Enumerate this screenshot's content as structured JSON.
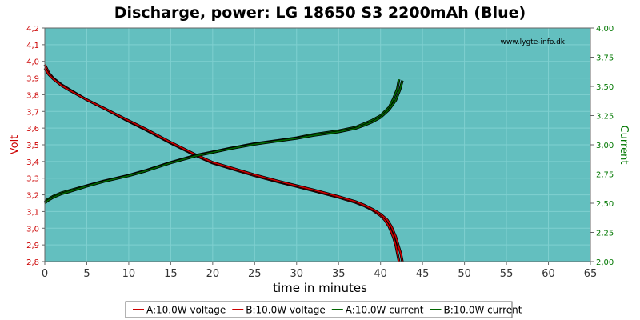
{
  "chart_data": {
    "type": "line",
    "title": "Discharge, power: LG 18650 S3 2200mAh (Blue)",
    "watermark": "www.lygte-info.dk",
    "xlabel": "time in minutes",
    "ylabel_left": "Volt",
    "ylabel_right": "Current",
    "xlim": [
      0,
      65
    ],
    "ylim_left": [
      2.8,
      4.2
    ],
    "ylim_right": [
      2.0,
      4.0
    ],
    "x_ticks": [
      "0",
      "5",
      "10",
      "15",
      "20",
      "25",
      "30",
      "35",
      "40",
      "45",
      "50",
      "55",
      "60",
      "65"
    ],
    "y_left_ticks": [
      "2,8",
      "2,9",
      "3,0",
      "3,1",
      "3,2",
      "3,3",
      "3,4",
      "3,5",
      "3,6",
      "3,7",
      "3,8",
      "3,9",
      "4,0",
      "4,1",
      "4,2"
    ],
    "y_right_ticks": [
      "2,00",
      "2,25",
      "2,50",
      "2,75",
      "3,00",
      "3,25",
      "3,50",
      "3,75",
      "4,00"
    ],
    "grid": true,
    "legend_position": "bottom",
    "colors": {
      "plot_bg": "#63BFBF",
      "grid": "#7fd0d0",
      "voltage": "#cc0000",
      "current": "#006600",
      "left_axis": "#cc0000",
      "right_axis": "#007700"
    },
    "series": [
      {
        "name": "A:10.0W voltage",
        "axis": "left",
        "color": "#cc0000",
        "x": [
          0,
          0.5,
          1,
          2,
          3,
          5,
          7,
          10,
          12,
          15,
          17,
          18,
          20,
          22,
          25,
          28,
          30,
          32,
          35,
          37,
          38,
          39,
          40,
          40.5,
          41,
          41.5,
          41.8,
          42,
          42.2
        ],
        "values": [
          3.98,
          3.93,
          3.9,
          3.86,
          3.83,
          3.77,
          3.72,
          3.64,
          3.59,
          3.51,
          3.46,
          3.435,
          3.39,
          3.36,
          3.315,
          3.275,
          3.25,
          3.225,
          3.185,
          3.155,
          3.135,
          3.11,
          3.075,
          3.05,
          3.01,
          2.95,
          2.9,
          2.85,
          2.8
        ]
      },
      {
        "name": "B:10.0W voltage",
        "axis": "left",
        "color": "#cc0000",
        "x": [
          0,
          0.5,
          1,
          2,
          3,
          5,
          7,
          10,
          12,
          15,
          17,
          18,
          20,
          22,
          25,
          28,
          30,
          32,
          35,
          37,
          38,
          39,
          40,
          40.8,
          41.3,
          41.8,
          42.1,
          42.4,
          42.6
        ],
        "values": [
          3.96,
          3.92,
          3.895,
          3.855,
          3.825,
          3.77,
          3.72,
          3.645,
          3.595,
          3.515,
          3.465,
          3.44,
          3.395,
          3.365,
          3.32,
          3.28,
          3.255,
          3.23,
          3.19,
          3.16,
          3.14,
          3.115,
          3.085,
          3.05,
          3.01,
          2.95,
          2.9,
          2.85,
          2.8
        ]
      },
      {
        "name": "A:10.0W current",
        "axis": "right",
        "color": "#006600",
        "x": [
          0,
          0.3,
          1,
          2,
          3,
          5,
          7,
          10,
          12,
          15,
          18,
          20,
          22,
          25,
          28,
          30,
          32,
          35,
          37,
          38,
          39,
          40,
          41,
          41.5,
          42,
          42.2
        ],
        "values": [
          2.51,
          2.53,
          2.56,
          2.59,
          2.61,
          2.65,
          2.69,
          2.74,
          2.78,
          2.85,
          2.91,
          2.94,
          2.97,
          3.01,
          3.04,
          3.06,
          3.09,
          3.12,
          3.15,
          3.18,
          3.21,
          3.25,
          3.32,
          3.39,
          3.48,
          3.56
        ]
      },
      {
        "name": "B:10.0W current",
        "axis": "right",
        "color": "#006600",
        "x": [
          0,
          0.3,
          1,
          2,
          3,
          5,
          7,
          10,
          12,
          15,
          18,
          20,
          22,
          25,
          28,
          30,
          32,
          35,
          37,
          38,
          39,
          40,
          41,
          41.8,
          42.3,
          42.6
        ],
        "values": [
          2.5,
          2.52,
          2.55,
          2.58,
          2.6,
          2.645,
          2.685,
          2.735,
          2.775,
          2.845,
          2.905,
          2.935,
          2.965,
          3.005,
          3.035,
          3.055,
          3.08,
          3.11,
          3.14,
          3.165,
          3.195,
          3.235,
          3.3,
          3.38,
          3.47,
          3.55
        ]
      }
    ]
  }
}
